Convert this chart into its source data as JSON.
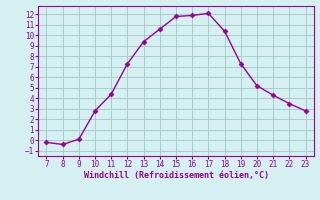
{
  "x": [
    7,
    8,
    9,
    10,
    11,
    12,
    13,
    14,
    15,
    16,
    17,
    18,
    19,
    20,
    21,
    22,
    23
  ],
  "y": [
    -0.2,
    -0.4,
    0.1,
    2.8,
    4.4,
    7.3,
    9.4,
    10.6,
    11.8,
    11.9,
    12.1,
    10.4,
    7.3,
    5.2,
    4.3,
    3.5,
    2.8
  ],
  "xlim": [
    6.5,
    23.5
  ],
  "ylim": [
    -1.5,
    12.8
  ],
  "xticks": [
    7,
    8,
    9,
    10,
    11,
    12,
    13,
    14,
    15,
    16,
    17,
    18,
    19,
    20,
    21,
    22,
    23
  ],
  "yticks": [
    -1,
    0,
    1,
    2,
    3,
    4,
    5,
    6,
    7,
    8,
    9,
    10,
    11,
    12
  ],
  "xlabel": "Windchill (Refroidissement éolien,°C)",
  "line_color": "#990099",
  "marker": "D",
  "marker_size": 2.5,
  "bg_color": "#d4f0f0",
  "grid_color": "#aacccc",
  "font_color": "#990099",
  "tick_fontsize": 5.5,
  "xlabel_fontsize": 6.0
}
